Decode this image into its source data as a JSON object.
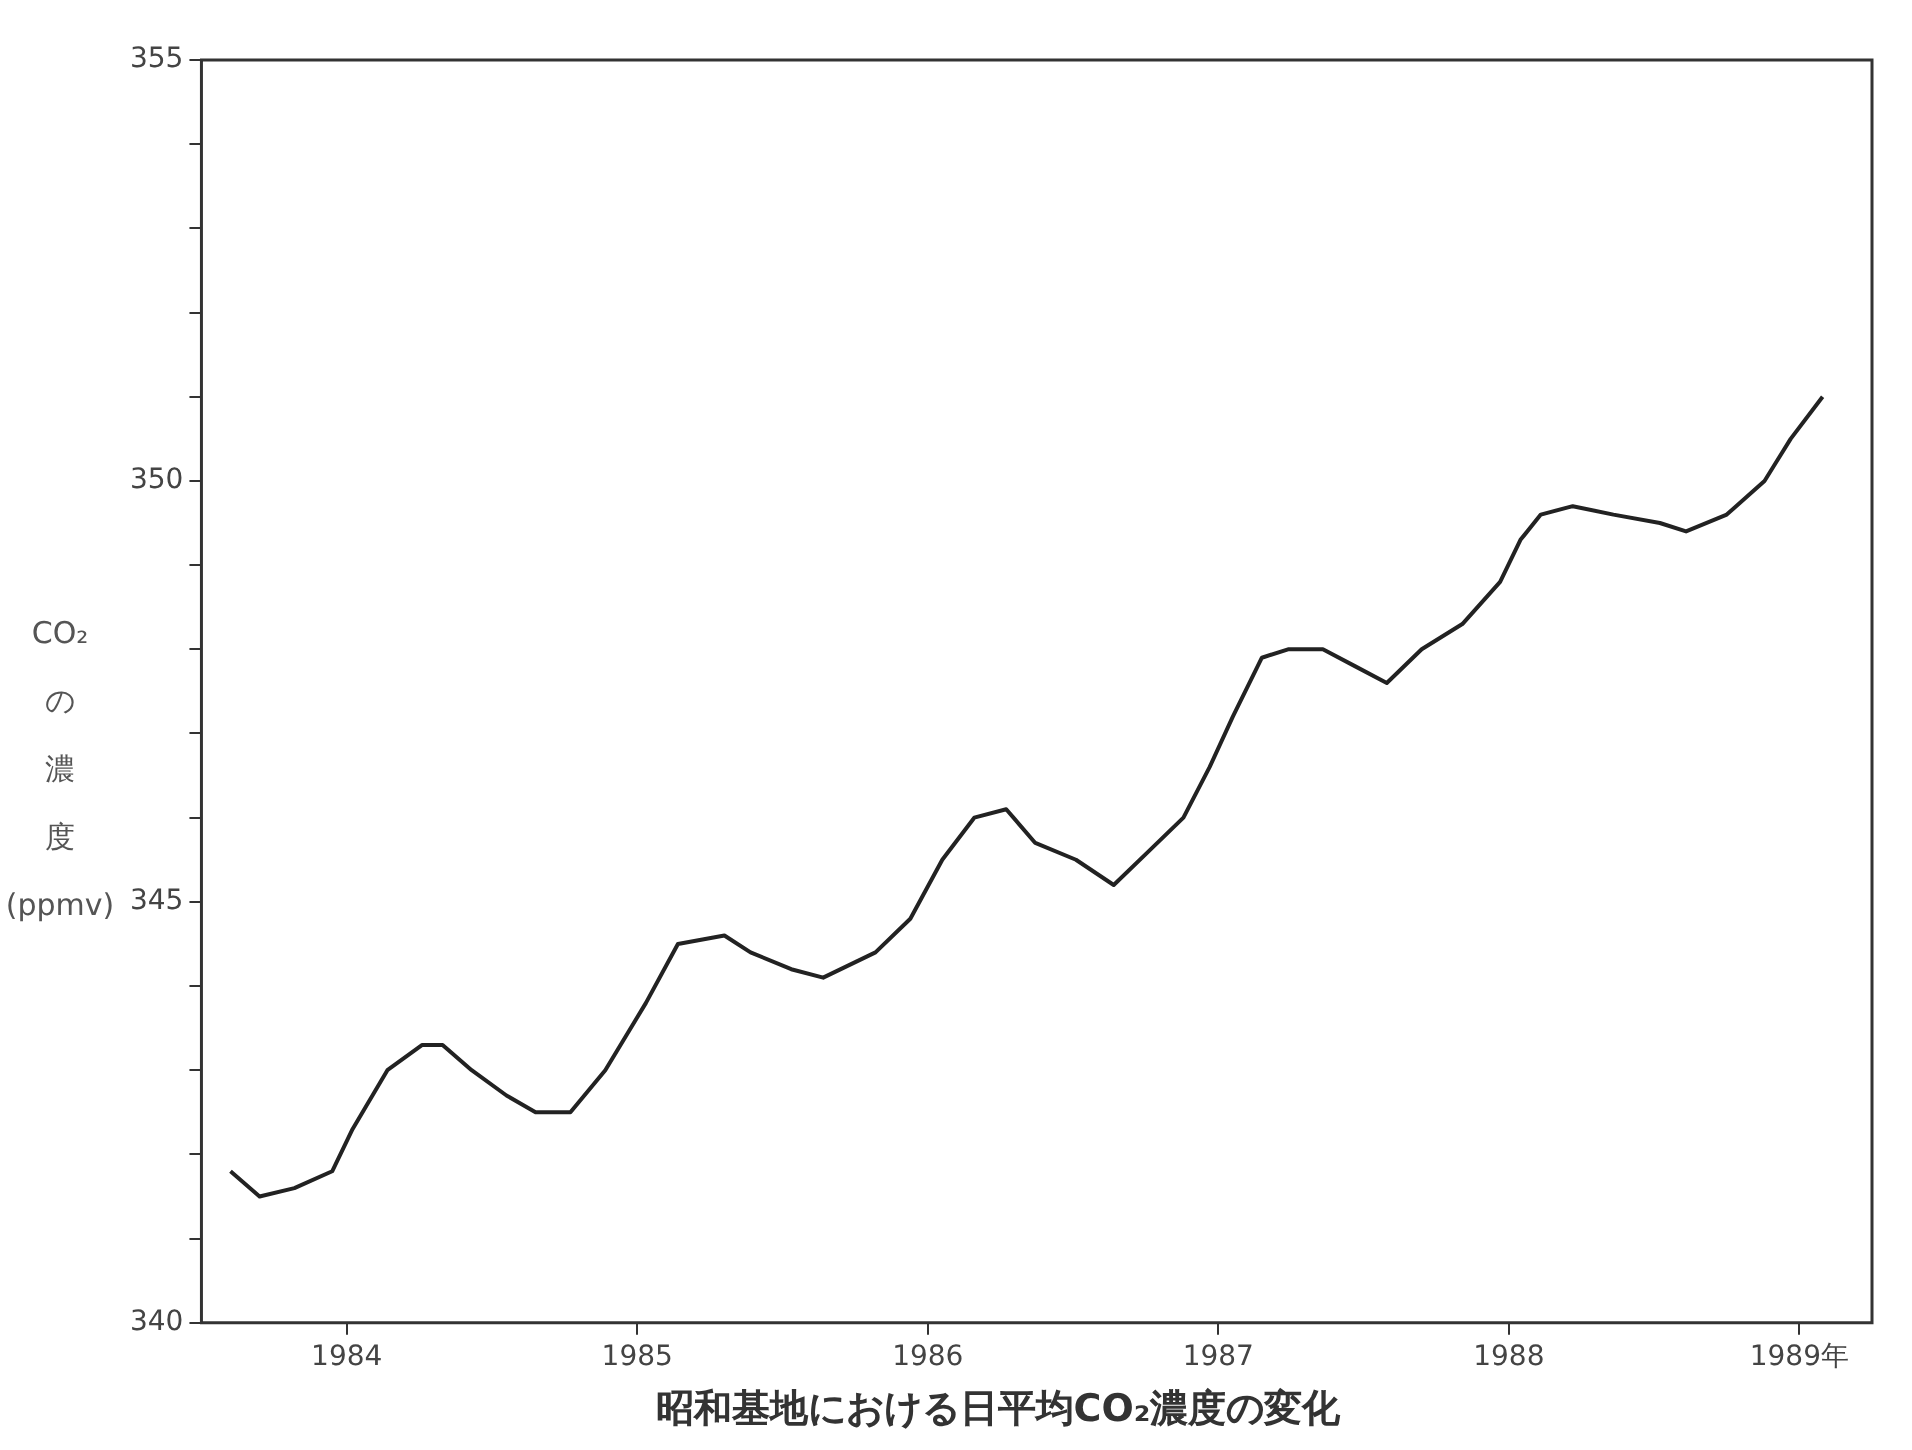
{
  "chart_data": {
    "type": "line",
    "title": "昭和基地における日平均CO₂濃度の変化",
    "ylabel": "CO₂の濃度(ppmv)",
    "xlim": [
      1983.5,
      1989.25
    ],
    "xticks": [
      {
        "value": 1984,
        "label": "1984"
      },
      {
        "value": 1985,
        "label": "1985"
      },
      {
        "value": 1986,
        "label": "1986"
      },
      {
        "value": 1987,
        "label": "1987"
      },
      {
        "value": 1988,
        "label": "1988"
      },
      {
        "value": 1989,
        "label": "1989年"
      }
    ],
    "ylim": [
      340,
      355
    ],
    "yticks": [
      340,
      {
        "value": 341,
        "label": null
      },
      {
        "value": 342,
        "label": null
      },
      {
        "value": 343,
        "label": null
      },
      {
        "value": 344,
        "label": null
      },
      345,
      {
        "value": 346,
        "label": null
      },
      {
        "value": 347,
        "label": null
      },
      {
        "value": 348,
        "label": null
      },
      {
        "value": 349,
        "label": null
      },
      350,
      {
        "value": 351,
        "label": null
      },
      {
        "value": 352,
        "label": null
      },
      {
        "value": 353,
        "label": null
      },
      {
        "value": 354,
        "label": null
      },
      355
    ],
    "grid": false,
    "legend": false,
    "marker": "none",
    "line_style": "solid",
    "series": [
      {
        "color": "#222222",
        "x": [
          1983.6,
          1983.7,
          1983.82,
          1983.95,
          1984.02,
          1984.14,
          1984.26,
          1984.33,
          1984.43,
          1984.55,
          1984.65,
          1984.77,
          1984.89,
          1985.03,
          1985.14,
          1985.3,
          1985.39,
          1985.53,
          1985.64,
          1985.82,
          1985.94,
          1986.05,
          1986.16,
          1986.27,
          1986.37,
          1986.51,
          1986.64,
          1986.76,
          1986.88,
          1986.97,
          1987.05,
          1987.15,
          1987.24,
          1987.36,
          1987.47,
          1987.58,
          1987.7,
          1987.84,
          1987.97,
          1988.04,
          1988.11,
          1988.22,
          1988.36,
          1988.52,
          1988.61,
          1988.75,
          1988.88,
          1988.97,
          1989.08
        ],
        "values": [
          341.8,
          341.5,
          341.6,
          341.8,
          342.3,
          343.0,
          343.3,
          343.3,
          343.0,
          342.7,
          342.5,
          342.5,
          343.0,
          343.8,
          344.5,
          344.6,
          344.4,
          344.2,
          344.1,
          344.4,
          344.8,
          345.5,
          346.0,
          346.1,
          345.7,
          345.5,
          345.2,
          345.6,
          346.0,
          346.6,
          347.2,
          347.9,
          348.0,
          348.0,
          347.8,
          347.6,
          348.0,
          348.3,
          348.8,
          349.3,
          349.6,
          349.7,
          349.6,
          349.5,
          349.4,
          349.6,
          350.0,
          350.5,
          351.0
        ]
      }
    ]
  }
}
